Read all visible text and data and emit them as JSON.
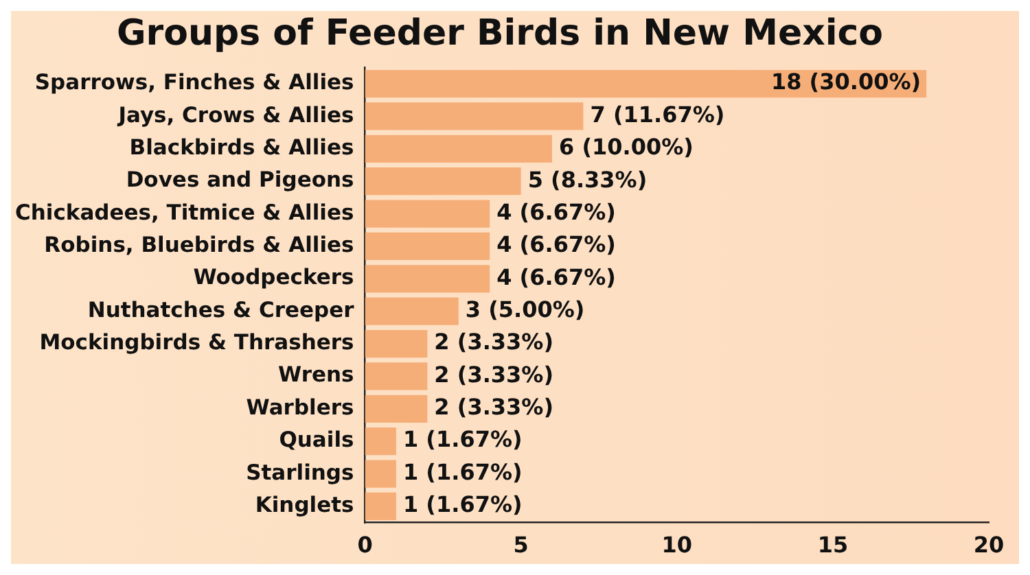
{
  "chart_data": {
    "type": "bar",
    "orientation": "horizontal",
    "title": "Groups of Feeder Birds in New Mexico",
    "categories": [
      "Sparrows, Finches & Allies",
      "Jays, Crows & Allies",
      "Blackbirds & Allies",
      "Doves and Pigeons",
      "Chickadees, Titmice & Allies",
      "Robins, Bluebirds & Allies",
      "Woodpeckers",
      "Nuthatches & Creeper",
      "Mockingbirds & Thrashers",
      "Wrens",
      "Warblers",
      "Quails",
      "Starlings",
      "Kinglets"
    ],
    "values": [
      18,
      7,
      6,
      5,
      4,
      4,
      4,
      3,
      2,
      2,
      2,
      1,
      1,
      1
    ],
    "value_labels": [
      "18 (30.00%)",
      "7 (11.67%)",
      "6 (10.00%)",
      "5 (8.33%)",
      "4 (6.67%)",
      "4 (6.67%)",
      "4 (6.67%)",
      "3 (5.00%)",
      "2 (3.33%)",
      "2 (3.33%)",
      "2 (3.33%)",
      "1 (1.67%)",
      "1 (1.67%)",
      "1 (1.67%)"
    ],
    "color": "#f6ae78",
    "xlim": [
      0,
      20
    ],
    "xticks": [
      0,
      5,
      10,
      15,
      20
    ],
    "grid": false,
    "legend": false
  }
}
